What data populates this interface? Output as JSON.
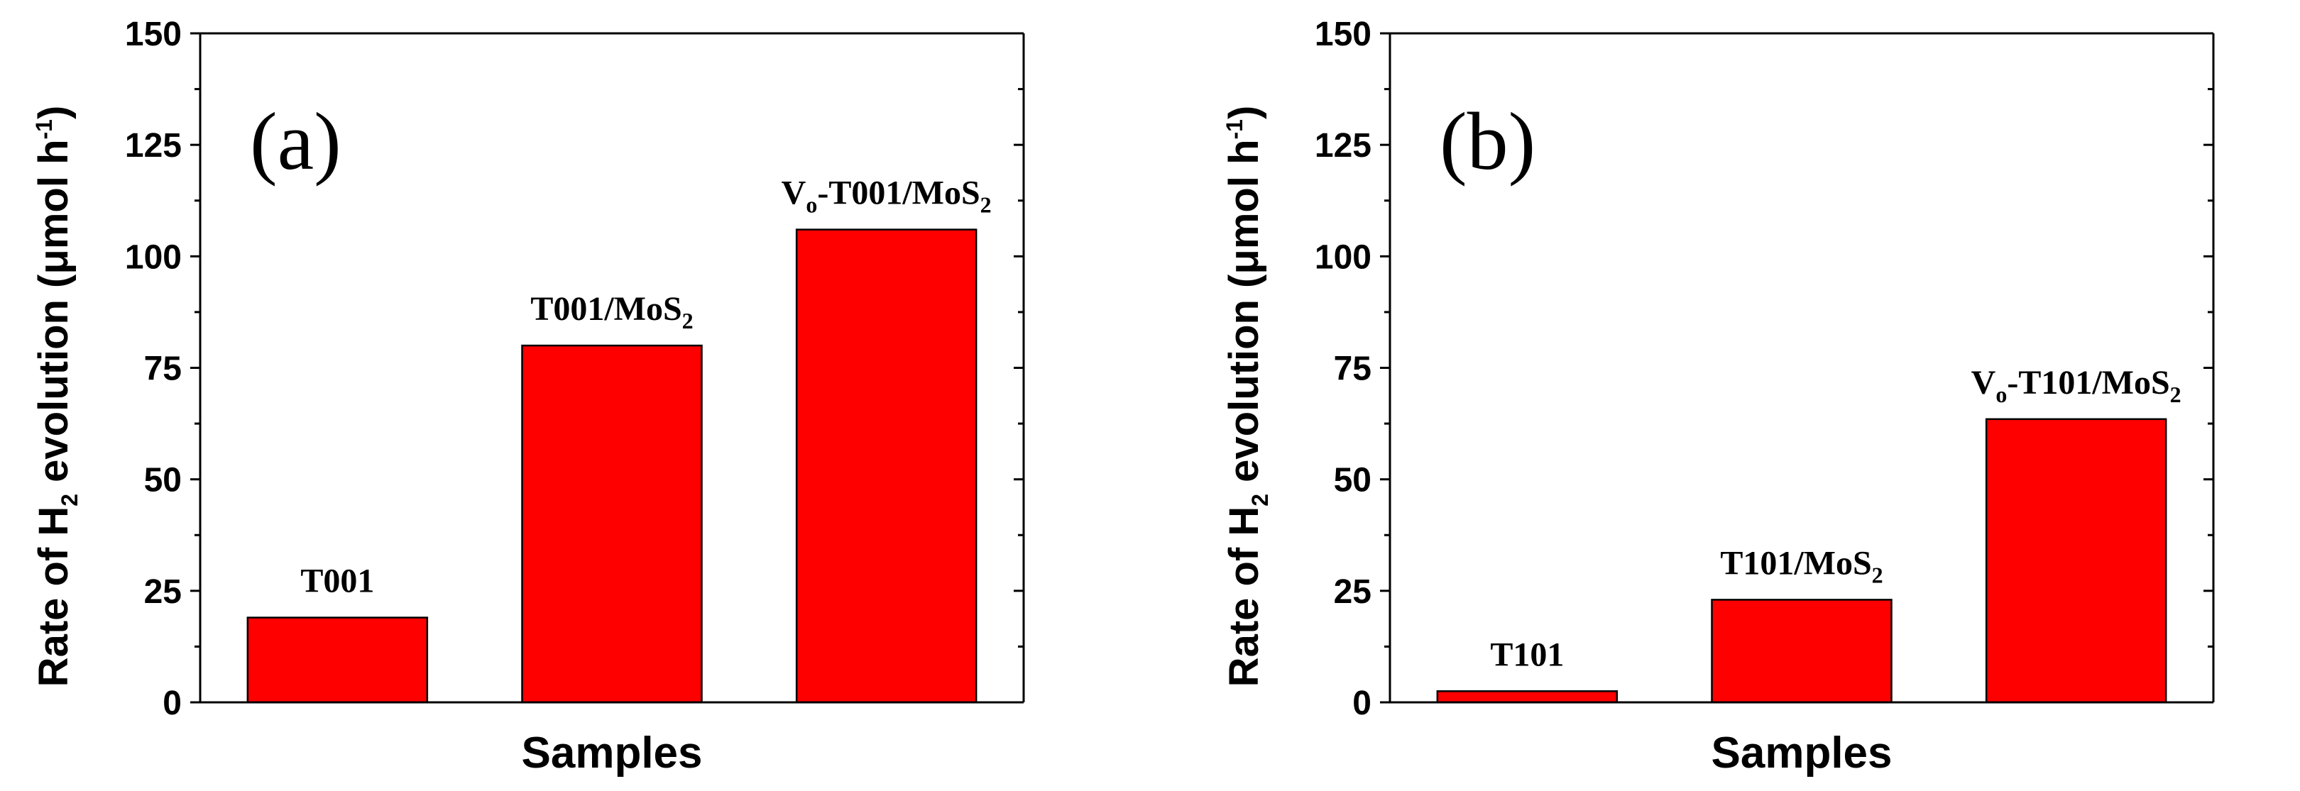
{
  "colors": {
    "bar": "#ff0000",
    "axis": "#000000"
  },
  "chart_data": [
    {
      "type": "bar",
      "panel_label": "(a)",
      "xlabel": "Samples",
      "ylabel": {
        "text": "Rate of H",
        "sub": "2",
        "mid": " evolution (μmol h",
        "sup": "-1",
        "end": ")"
      },
      "ylim": [
        0,
        150
      ],
      "yticks": [
        "0",
        "25",
        "50",
        "75",
        "100",
        "125",
        "150"
      ],
      "categories": [
        {
          "main": "T001",
          "sub": "",
          "tail": "",
          "value": 19
        },
        {
          "main": "T001/MoS",
          "sub": "2",
          "tail": "",
          "value": 80
        },
        {
          "main": "V",
          "sub": "o",
          "tail": "-T001/MoS",
          "sub2": "2",
          "value": 106
        }
      ]
    },
    {
      "type": "bar",
      "panel_label": "(b)",
      "xlabel": "Samples",
      "ylabel": {
        "text": "Rate of H",
        "sub": "2",
        "mid": " evolution (μmol h",
        "sup": "-1",
        "end": ")"
      },
      "ylim": [
        0,
        150
      ],
      "yticks": [
        "0",
        "25",
        "50",
        "75",
        "100",
        "125",
        "150"
      ],
      "categories": [
        {
          "main": "T101",
          "sub": "",
          "tail": "",
          "value": 2.5
        },
        {
          "main": "T101/MoS",
          "sub": "2",
          "tail": "",
          "value": 23
        },
        {
          "main": "V",
          "sub": "o",
          "tail": "-T101/MoS",
          "sub2": "2",
          "value": 63.5
        }
      ]
    }
  ]
}
